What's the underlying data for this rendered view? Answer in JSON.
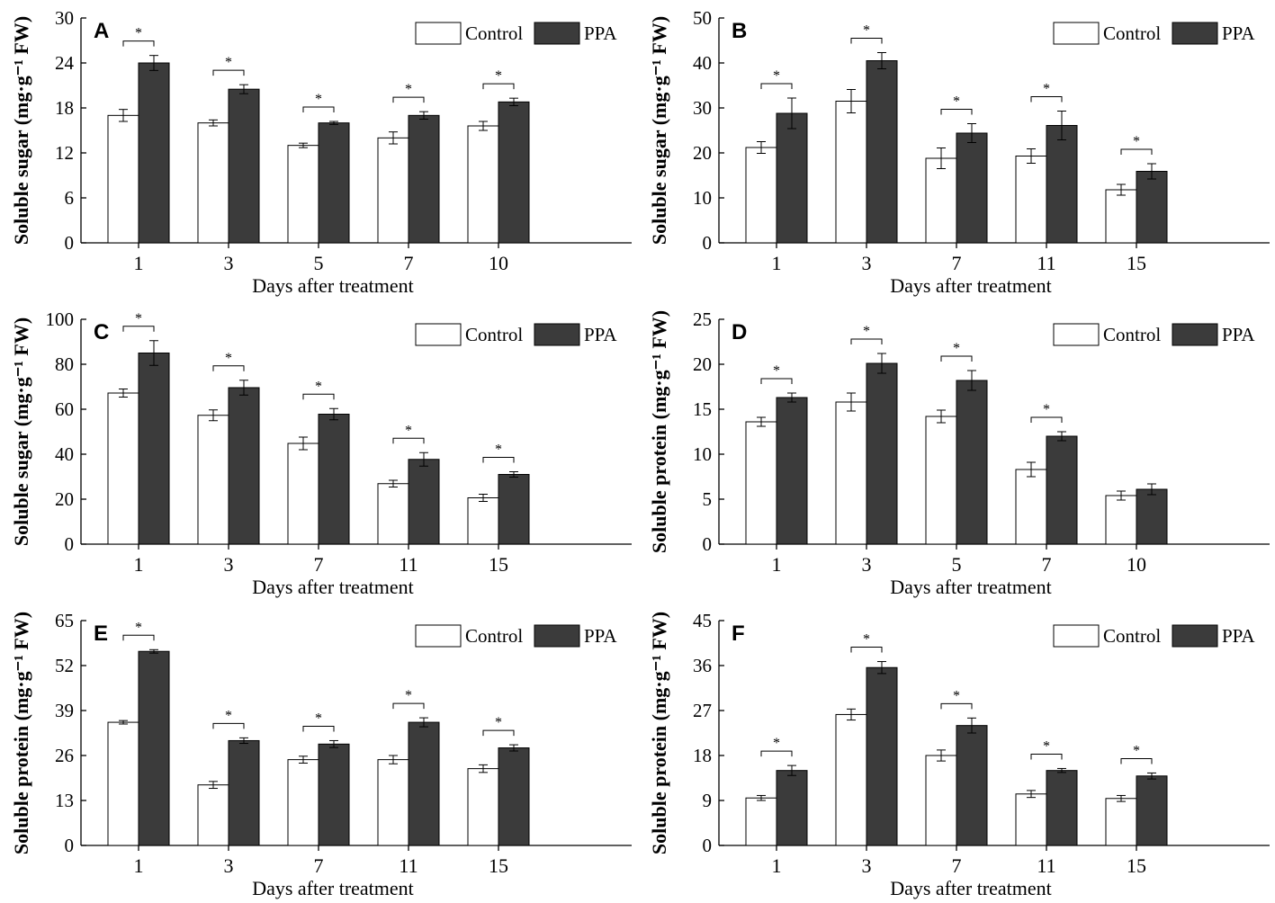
{
  "legend": {
    "control_label": "Control",
    "ppa_label": "PPA"
  },
  "common": {
    "xlabel": "Days after treatment",
    "star": "*"
  },
  "colors": {
    "control_fill": "#ffffff",
    "ppa_fill": "#3b3b3b"
  },
  "chart_data": [
    {
      "panel": "A",
      "type": "bar",
      "ylabel": "Soluble sugar (mg·g⁻¹ FW)",
      "xlabel": "Days after treatment",
      "categories": [
        "1",
        "3",
        "5",
        "7",
        "10"
      ],
      "ylim": [
        0,
        30
      ],
      "yticks": [
        "0",
        "6",
        "12",
        "18",
        "24",
        "30"
      ],
      "series": [
        {
          "name": "Control",
          "values": [
            17.0,
            16.0,
            13.0,
            14.0,
            15.6
          ],
          "errors": [
            0.8,
            0.4,
            0.3,
            0.8,
            0.6
          ]
        },
        {
          "name": "PPA",
          "values": [
            24.0,
            20.5,
            16.0,
            17.0,
            18.8
          ],
          "errors": [
            1.0,
            0.6,
            0.2,
            0.5,
            0.5
          ]
        }
      ],
      "significant": [
        true,
        true,
        true,
        true,
        true
      ]
    },
    {
      "panel": "B",
      "type": "bar",
      "ylabel": "Soluble sugar (mg·g⁻¹ FW)",
      "xlabel": "Days after treatment",
      "categories": [
        "1",
        "3",
        "7",
        "11",
        "15"
      ],
      "ylim": [
        0,
        50
      ],
      "yticks": [
        "0",
        "10",
        "20",
        "30",
        "40",
        "50"
      ],
      "series": [
        {
          "name": "Control",
          "values": [
            21.2,
            31.5,
            18.8,
            19.3,
            11.8
          ],
          "errors": [
            1.3,
            2.6,
            2.3,
            1.6,
            1.2
          ]
        },
        {
          "name": "PPA",
          "values": [
            28.8,
            40.5,
            24.4,
            26.1,
            15.9
          ],
          "errors": [
            3.4,
            1.8,
            2.1,
            3.2,
            1.7
          ]
        }
      ],
      "significant": [
        true,
        true,
        true,
        true,
        true
      ]
    },
    {
      "panel": "C",
      "type": "bar",
      "ylabel": "Soluble sugar (mg·g⁻¹ FW)",
      "xlabel": "Days after treatment",
      "categories": [
        "1",
        "3",
        "7",
        "11",
        "15"
      ],
      "ylim": [
        0,
        100
      ],
      "yticks": [
        "0",
        "20",
        "40",
        "60",
        "80",
        "100"
      ],
      "series": [
        {
          "name": "Control",
          "values": [
            67.2,
            57.3,
            44.8,
            26.9,
            20.6
          ],
          "errors": [
            1.8,
            2.4,
            2.8,
            1.5,
            1.6
          ]
        },
        {
          "name": "PPA",
          "values": [
            85.0,
            69.6,
            57.8,
            37.7,
            31.0
          ],
          "errors": [
            5.5,
            3.3,
            2.5,
            3.0,
            1.2
          ]
        }
      ],
      "significant": [
        true,
        true,
        true,
        true,
        true
      ]
    },
    {
      "panel": "D",
      "type": "bar",
      "ylabel": "Soluble protein (mg·g⁻¹ FW)",
      "xlabel": "Days after treatment",
      "categories": [
        "1",
        "3",
        "5",
        "7",
        "10"
      ],
      "ylim": [
        0,
        25
      ],
      "yticks": [
        "0",
        "5",
        "10",
        "15",
        "20",
        "25"
      ],
      "series": [
        {
          "name": "Control",
          "values": [
            13.6,
            15.8,
            14.2,
            8.3,
            5.4
          ],
          "errors": [
            0.5,
            1.0,
            0.7,
            0.8,
            0.5
          ]
        },
        {
          "name": "PPA",
          "values": [
            16.3,
            20.1,
            18.2,
            12.0,
            6.1
          ],
          "errors": [
            0.5,
            1.1,
            1.1,
            0.5,
            0.6
          ]
        }
      ],
      "significant": [
        true,
        true,
        true,
        true,
        false
      ]
    },
    {
      "panel": "E",
      "type": "bar",
      "ylabel": "Soluble protein (mg·g⁻¹ FW)",
      "xlabel": "Days after treatment",
      "categories": [
        "1",
        "3",
        "7",
        "11",
        "15"
      ],
      "ylim": [
        0,
        65
      ],
      "yticks": [
        "0",
        "13",
        "26",
        "39",
        "52",
        "65"
      ],
      "series": [
        {
          "name": "Control",
          "values": [
            35.6,
            17.5,
            24.8,
            24.8,
            22.2
          ],
          "errors": [
            0.5,
            1.0,
            1.0,
            1.2,
            1.1
          ]
        },
        {
          "name": "PPA",
          "values": [
            56.1,
            30.3,
            29.3,
            35.6,
            28.2
          ],
          "errors": [
            0.5,
            0.8,
            1.0,
            1.3,
            0.9
          ]
        }
      ],
      "significant": [
        true,
        true,
        true,
        true,
        true
      ]
    },
    {
      "panel": "F",
      "type": "bar",
      "ylabel": "Soluble protein (mg·g⁻¹ FW)",
      "xlabel": "Days after treatment",
      "categories": [
        "1",
        "3",
        "7",
        "11",
        "15"
      ],
      "ylim": [
        0,
        45
      ],
      "yticks": [
        "0",
        "9",
        "18",
        "27",
        "36",
        "45"
      ],
      "series": [
        {
          "name": "Control",
          "values": [
            9.5,
            26.2,
            18.0,
            10.3,
            9.4
          ],
          "errors": [
            0.5,
            1.1,
            1.1,
            0.7,
            0.6
          ]
        },
        {
          "name": "PPA",
          "values": [
            15.0,
            35.6,
            24.0,
            15.0,
            13.9
          ],
          "errors": [
            1.0,
            1.2,
            1.5,
            0.4,
            0.6
          ]
        }
      ],
      "significant": [
        true,
        true,
        true,
        true,
        true
      ]
    }
  ]
}
